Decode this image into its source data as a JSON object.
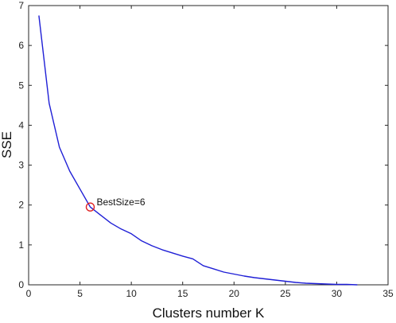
{
  "chart_data": {
    "type": "line",
    "xlabel": "Clusters number K",
    "ylabel": "SSE",
    "xlim": [
      0,
      35
    ],
    "ylim": [
      0,
      7
    ],
    "xticks": [
      0,
      5,
      10,
      15,
      20,
      25,
      30,
      35
    ],
    "yticks": [
      0,
      1,
      2,
      3,
      4,
      5,
      6,
      7
    ],
    "grid": false,
    "series": [
      {
        "color": "#1f1fd6",
        "x": [
          1,
          2,
          3,
          4,
          5,
          6,
          7,
          8,
          9,
          10,
          11,
          12,
          13,
          14,
          15,
          16,
          17,
          18,
          19,
          20,
          21,
          22,
          23,
          24,
          25,
          26,
          27,
          28,
          29,
          30,
          31,
          32
        ],
        "y": [
          6.75,
          4.55,
          3.45,
          2.85,
          2.4,
          1.95,
          1.75,
          1.55,
          1.4,
          1.28,
          1.1,
          0.98,
          0.88,
          0.8,
          0.72,
          0.65,
          0.48,
          0.4,
          0.32,
          0.27,
          0.22,
          0.18,
          0.15,
          0.12,
          0.09,
          0.06,
          0.04,
          0.03,
          0.02,
          0.01,
          0.01,
          0.0
        ]
      }
    ],
    "annotation": {
      "text": "BestSize=6",
      "x": 6,
      "y": 1.95,
      "marker_color": "#e02020"
    }
  }
}
